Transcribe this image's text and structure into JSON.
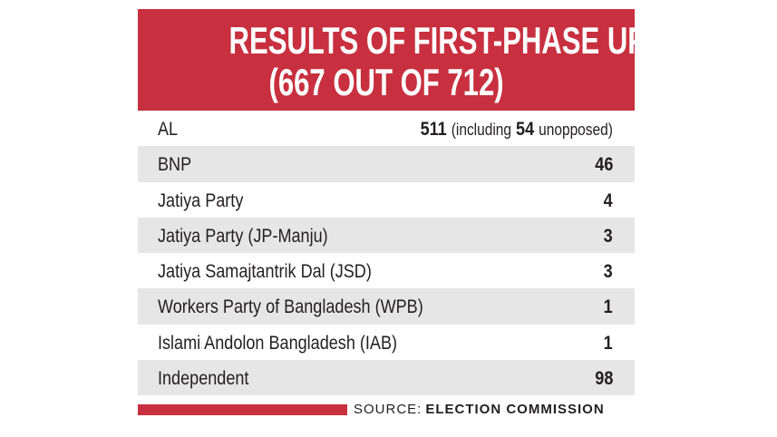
{
  "header": {
    "title_lines": [
      "RESULTS OF FIRST-PHASE UP POLLS",
      "(667 OUT OF 712)"
    ]
  },
  "table": {
    "rows": [
      {
        "party": "AL",
        "seats": 511,
        "note_prefix": "(including",
        "note_number": 54,
        "note_suffix": "unopposed)"
      },
      {
        "party": "BNP",
        "seats": 46
      },
      {
        "party": "Jatiya Party",
        "seats": 4
      },
      {
        "party": "Jatiya Party (JP-Manju)",
        "seats": 3
      },
      {
        "party": "Jatiya Samajtantrik Dal (JSD)",
        "seats": 3
      },
      {
        "party": "Workers Party of Bangladesh (WPB)",
        "seats": 1
      },
      {
        "party": "Islami Andolon Bangladesh (IAB)",
        "seats": 1
      },
      {
        "party": "Independent",
        "seats": 98
      }
    ]
  },
  "footer": {
    "source_label": "SOURCE:",
    "source": "ELECTION COMMISSION"
  }
}
